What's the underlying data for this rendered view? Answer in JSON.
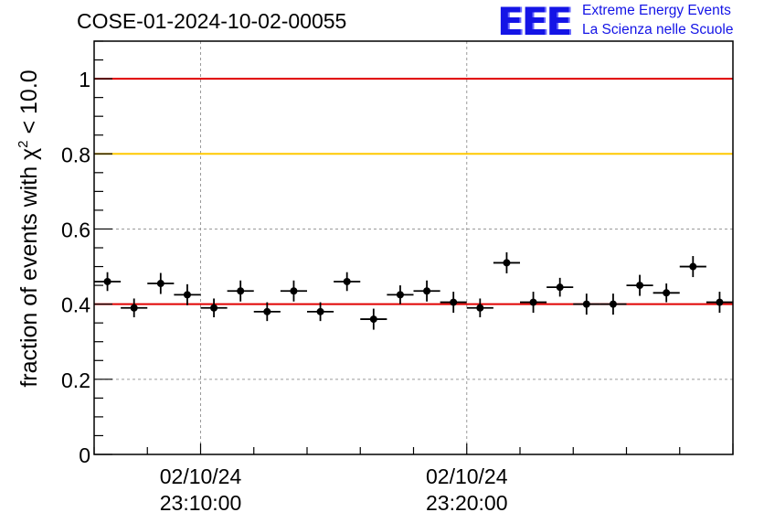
{
  "header": {
    "run_id": "COSE-01-2024-10-02-00055",
    "logo_mark": "EEE",
    "logo_line1": "Extreme Energy Events",
    "logo_line2": "La Scienza nelle Scuole"
  },
  "colors": {
    "threshold_upper": "#e00000",
    "threshold_warning": "#ffc800",
    "threshold_lower": "#e00000",
    "points": "#000000",
    "grid": "#9a9a9a",
    "logo": "#1414e6"
  },
  "chart_data": {
    "type": "scatter",
    "ylabel": "fraction of events with χ² < 10.0",
    "ylim": [
      0,
      1.1
    ],
    "yticks": [
      0,
      0.2,
      0.4,
      0.6,
      0.8,
      1
    ],
    "ytick_labels": [
      "0",
      "0.2",
      "0.4",
      "0.6",
      "0.8",
      "1"
    ],
    "xlim": [
      "2024-10-02 23:06:00",
      "2024-10-02 23:30:00"
    ],
    "xtick_labels": [
      {
        "date": "02/10/24",
        "time": "23:10:00",
        "at": "2024-10-02 23:10:00"
      },
      {
        "date": "02/10/24",
        "time": "23:20:00",
        "at": "2024-10-02 23:20:00"
      }
    ],
    "grid": true,
    "reference_lines": [
      {
        "y": 1.0,
        "color": "red"
      },
      {
        "y": 0.8,
        "color": "orange"
      },
      {
        "y": 0.4,
        "color": "red"
      }
    ],
    "x": [
      "23:06:00",
      "23:07:00",
      "23:08:00",
      "23:09:00",
      "23:10:00",
      "23:11:00",
      "23:12:00",
      "23:13:00",
      "23:14:00",
      "23:15:00",
      "23:16:00",
      "23:17:00",
      "23:18:00",
      "23:19:00",
      "23:20:00",
      "23:21:00",
      "23:22:00",
      "23:23:00",
      "23:24:00",
      "23:25:00",
      "23:26:00",
      "23:27:00",
      "23:28:00",
      "23:29:00"
    ],
    "y": [
      0.46,
      0.39,
      0.455,
      0.425,
      0.39,
      0.435,
      0.38,
      0.435,
      0.38,
      0.46,
      0.36,
      0.425,
      0.435,
      0.405,
      0.39,
      0.51,
      0.405,
      0.445,
      0.4,
      0.4,
      0.45,
      0.43,
      0.5,
      0.405
    ],
    "y_error": [
      0.025,
      0.025,
      0.028,
      0.028,
      0.025,
      0.028,
      0.025,
      0.028,
      0.025,
      0.025,
      0.028,
      0.025,
      0.028,
      0.028,
      0.025,
      0.028,
      0.028,
      0.025,
      0.028,
      0.028,
      0.028,
      0.025,
      0.028,
      0.028
    ],
    "x_error_minutes": 0.5
  }
}
